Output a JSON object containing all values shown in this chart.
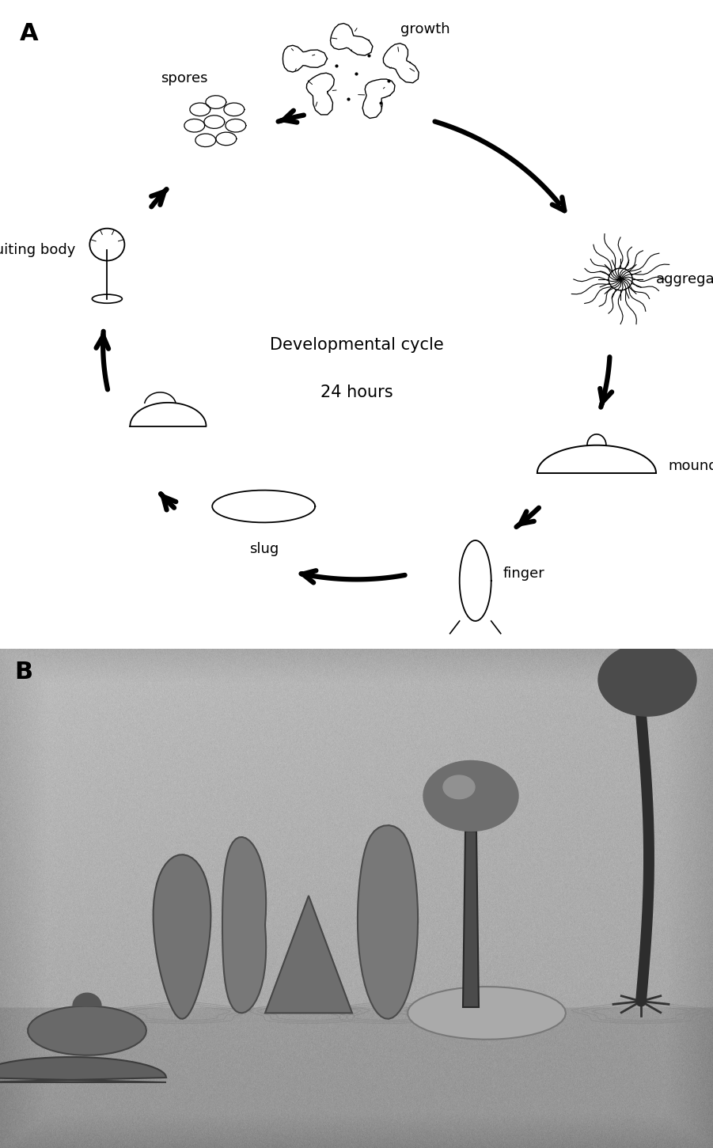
{
  "figure_label_A": "A",
  "figure_label_B": "B",
  "panel_A_title_line1": "Developmental cycle",
  "panel_A_title_line2": "24 hours",
  "stages": [
    "growth",
    "aggregation",
    "mound",
    "finger",
    "slug",
    "fruiting body",
    "spores"
  ],
  "background_color": "#ffffff",
  "text_color": "#000000",
  "arrow_color": "#000000",
  "panel_split": 0.425
}
